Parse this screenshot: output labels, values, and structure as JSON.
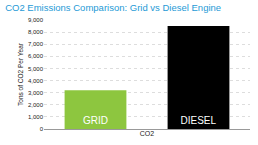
{
  "chart_data": {
    "type": "bar",
    "title": "CO2 Emissions Comparison: Grid vs Diesel Engine",
    "x_label": "CO2",
    "y_label": "Tons of CO2 Per Year",
    "categories": [
      "GRID",
      "DIESEL"
    ],
    "values": [
      3200,
      8500
    ],
    "colors": [
      "#8dc63f",
      "#000000"
    ],
    "ylim": [
      0,
      9000
    ],
    "yticks": [
      0,
      {
        "value": 1000,
        "label": "1,000"
      },
      {
        "value": 2000,
        "label": "2,000"
      },
      {
        "value": 3000,
        "label": "3,000"
      },
      {
        "value": 4000,
        "label": "4,000"
      },
      {
        "value": 5000,
        "label": "5,000"
      },
      {
        "value": 6000,
        "label": "6,000"
      },
      {
        "value": 7000,
        "label": "7,000"
      },
      {
        "value": 8000,
        "label": "8,000"
      },
      {
        "value": 9000,
        "label": "9,000"
      }
    ],
    "grid": true,
    "tick_labels": "y"
  }
}
